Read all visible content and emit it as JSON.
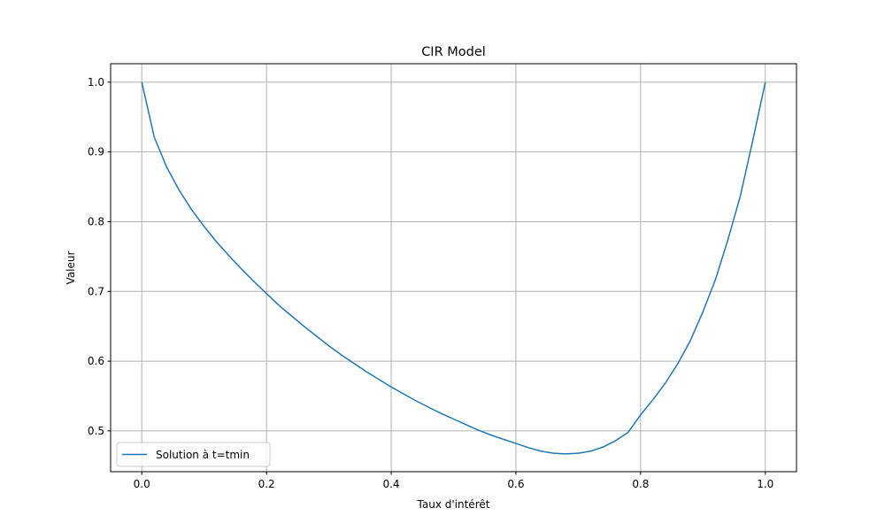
{
  "chart_data": {
    "type": "line",
    "title": "CIR Model",
    "xlabel": "Taux d'intérêt",
    "ylabel": "Valeur",
    "xlim": [
      -0.05,
      1.05
    ],
    "ylim": [
      0.4415,
      1.0265
    ],
    "xticks": [
      0.0,
      0.2,
      0.4,
      0.6,
      0.8,
      1.0
    ],
    "xtick_labels": [
      "0.0",
      "0.2",
      "0.4",
      "0.6",
      "0.8",
      "1.0"
    ],
    "yticks": [
      0.5,
      0.6,
      0.7,
      0.8,
      0.9,
      1.0
    ],
    "ytick_labels": [
      "0.5",
      "0.6",
      "0.7",
      "0.8",
      "0.9",
      "1.0"
    ],
    "grid": true,
    "legend": {
      "position": "lower-left"
    },
    "series": [
      {
        "name": "Solution à t=tmin",
        "color": "#1f77b4",
        "x": [
          0.0,
          0.02,
          0.04,
          0.06,
          0.08,
          0.1,
          0.12,
          0.14,
          0.16,
          0.18,
          0.2,
          0.22,
          0.24,
          0.26,
          0.28,
          0.3,
          0.32,
          0.34,
          0.36,
          0.38,
          0.4,
          0.42,
          0.44,
          0.46,
          0.48,
          0.5,
          0.52,
          0.54,
          0.56,
          0.58,
          0.6,
          0.62,
          0.64,
          0.66,
          0.68,
          0.7,
          0.72,
          0.74,
          0.76,
          0.78,
          0.8,
          0.82,
          0.84,
          0.86,
          0.88,
          0.9,
          0.92,
          0.94,
          0.96,
          0.98,
          1.0
        ],
        "y": [
          1.0,
          0.921,
          0.878,
          0.845,
          0.817,
          0.793,
          0.771,
          0.751,
          0.732,
          0.714,
          0.697,
          0.68,
          0.665,
          0.65,
          0.636,
          0.622,
          0.609,
          0.597,
          0.585,
          0.574,
          0.563,
          0.553,
          0.543,
          0.534,
          0.525,
          0.517,
          0.509,
          0.501,
          0.494,
          0.488,
          0.482,
          0.476,
          0.471,
          0.468,
          0.467,
          0.468,
          0.471,
          0.477,
          0.486,
          0.498,
          0.523,
          0.545,
          0.569,
          0.597,
          0.63,
          0.671,
          0.717,
          0.774,
          0.837,
          0.917,
          1.0
        ]
      }
    ]
  }
}
